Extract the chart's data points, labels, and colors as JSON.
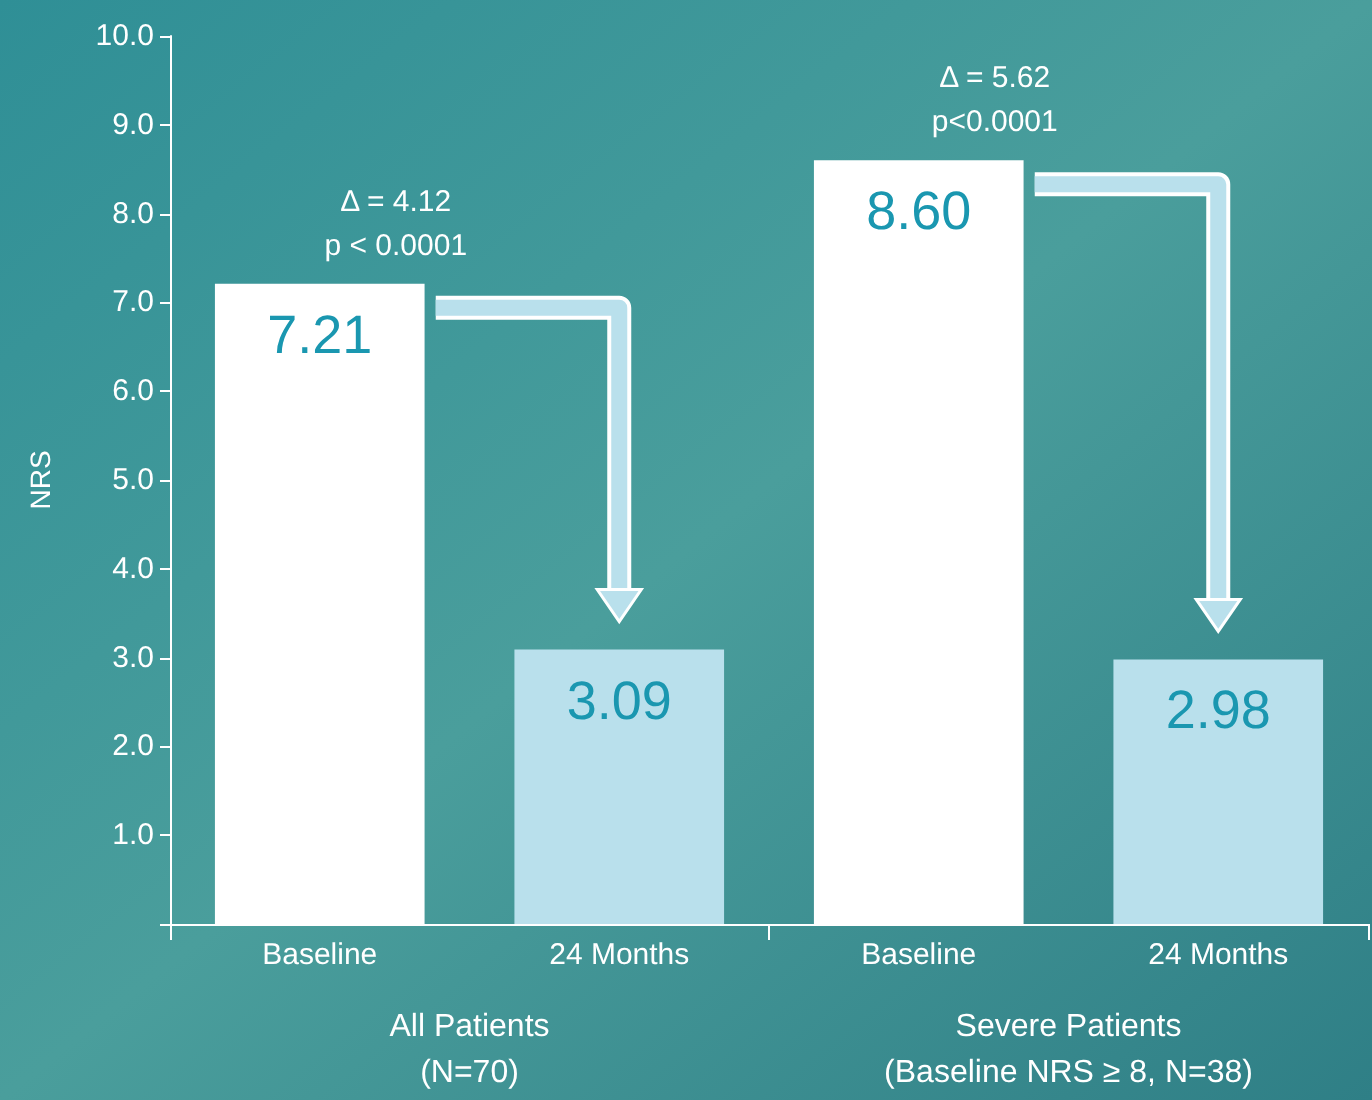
{
  "chart_data": {
    "type": "bar",
    "ylabel": "NRS",
    "categories": [
      "Baseline",
      "24 Months",
      "Baseline",
      "24 Months"
    ],
    "values": [
      7.21,
      3.09,
      8.6,
      2.98
    ],
    "colors": [
      "#ffffff",
      "#b9e0ec",
      "#ffffff",
      "#b9e0ec"
    ],
    "value_labels": [
      "7.21",
      "3.09",
      "8.60",
      "2.98"
    ],
    "ylim": [
      0,
      10
    ],
    "yticks": [
      {
        "value": 0,
        "label": null
      },
      {
        "value": 1,
        "label": "1.0"
      },
      {
        "value": 2,
        "label": "2.0"
      },
      {
        "value": 3,
        "label": "3.0"
      },
      {
        "value": 4,
        "label": "4.0"
      },
      {
        "value": 5,
        "label": "5.0"
      },
      {
        "value": 6,
        "label": "6.0"
      },
      {
        "value": 7,
        "label": "7.0"
      },
      {
        "value": 8,
        "label": "8.0"
      },
      {
        "value": 9,
        "label": "9.0"
      },
      {
        "value": 10,
        "label": "10.0"
      }
    ],
    "grid": false,
    "annotations": [
      "Δ = 4.12\np < 0.0001",
      "Δ = 5.62\np<0.0001",
      "All Patients\n(N=70)",
      "Severe Patients\n(Baseline NRS ≥ 8, N=38)"
    ]
  }
}
